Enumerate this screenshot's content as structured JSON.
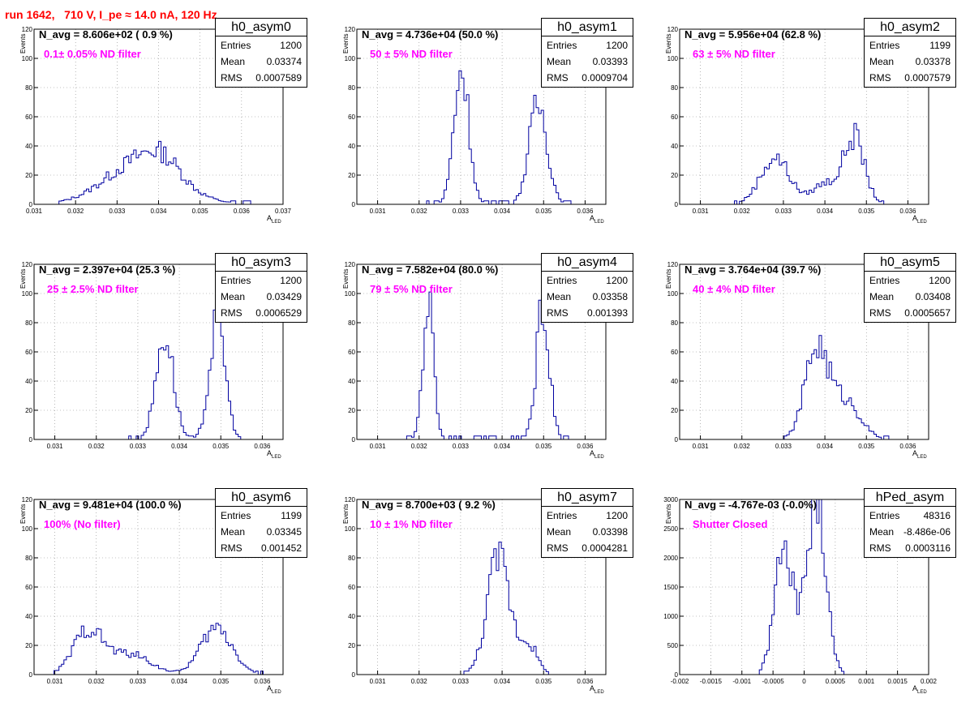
{
  "page_title": "run 1642,   710 V, I_pe ≈ 14.0 nA, 120 Hz",
  "stats_labels": {
    "entries": "Entries",
    "mean": "Mean",
    "rms": "RMS"
  },
  "y_title": "Events",
  "x_title_main": "A",
  "x_title_sub": "LED",
  "colors": {
    "histogram": "#0000a0",
    "title": "#ff0000",
    "annotation": "#ff00ff",
    "grid": "#888888"
  },
  "panels": [
    {
      "name": "h0_asym0",
      "navg": "N_avg = 8.606e+02 ( 0.9 %)",
      "note": "0.1± 0.05% ND filter",
      "entries": "1200",
      "mean": "0.03374",
      "rms": "0.0007589"
    },
    {
      "name": "h0_asym1",
      "navg": "N_avg = 4.736e+04 (50.0 %)",
      "note": "50 ± 5% ND filter",
      "entries": "1200",
      "mean": "0.03393",
      "rms": "0.0009704"
    },
    {
      "name": "h0_asym2",
      "navg": "N_avg = 5.956e+04 (62.8 %)",
      "note": "63 ± 5% ND filter",
      "entries": "1199",
      "mean": "0.03378",
      "rms": "0.0007579"
    },
    {
      "name": "h0_asym3",
      "navg": "N_avg = 2.397e+04 (25.3 %)",
      "note": "25 ± 2.5% ND filter",
      "entries": "1200",
      "mean": "0.03429",
      "rms": "0.0006529"
    },
    {
      "name": "h0_asym4",
      "navg": "N_avg = 7.582e+04 (80.0 %)",
      "note": "79 ± 5% ND filter",
      "entries": "1200",
      "mean": "0.03358",
      "rms": "0.001393"
    },
    {
      "name": "h0_asym5",
      "navg": "N_avg = 3.764e+04 (39.7 %)",
      "note": "40 ± 4% ND filter",
      "entries": "1200",
      "mean": "0.03408",
      "rms": "0.0005657"
    },
    {
      "name": "h0_asym6",
      "navg": "N_avg = 9.481e+04 (100.0 %)",
      "note": "100% (No filter)",
      "entries": "1199",
      "mean": "0.03345",
      "rms": "0.001452"
    },
    {
      "name": "h0_asym7",
      "navg": "N_avg = 8.700e+03 ( 9.2 %)",
      "note": "10 ± 1% ND filter",
      "entries": "1200",
      "mean": "0.03398",
      "rms": "0.0004281"
    },
    {
      "name": "hPed_asym",
      "navg": "N_avg = -4.767e-03 (-0.0%)",
      "note": "Shutter Closed",
      "entries": "48316",
      "mean": "-8.486e-06",
      "rms": "0.0003116"
    }
  ],
  "chart_data": [
    {
      "type": "bar",
      "title": "h0_asym0",
      "xlabel": "A_LED",
      "ylabel": "Events",
      "xlim": [
        0.031,
        0.037
      ],
      "ylim": [
        0,
        120
      ],
      "x_ticks": [
        "0.031",
        "0.032",
        "0.033",
        "0.034",
        "0.035",
        "0.036",
        "0.037"
      ],
      "y_ticks": [
        "0",
        "20",
        "40",
        "60",
        "80",
        "100",
        "120"
      ],
      "grid": true,
      "series": [
        {
          "peaks": [
            {
              "center": 0.0336,
              "sigma": 0.00085,
              "amp": 30
            },
            {
              "center": 0.0341,
              "sigma": 0.0004,
              "amp": 10
            }
          ],
          "range": [
            0.0316,
            0.0362
          ]
        }
      ]
    },
    {
      "type": "bar",
      "title": "h0_asym1",
      "xlabel": "A_LED",
      "ylabel": "Events",
      "xlim": [
        0.0305,
        0.0365
      ],
      "ylim": [
        0,
        120
      ],
      "x_ticks": [
        "0.031",
        "0.032",
        "0.033",
        "0.034",
        "0.035",
        "0.036"
      ],
      "y_ticks": [
        "0",
        "20",
        "40",
        "60",
        "80",
        "100",
        "120"
      ],
      "grid": true,
      "series": [
        {
          "peaks": [
            {
              "center": 0.03302,
              "sigma": 0.00018,
              "amp": 93
            },
            {
              "center": 0.03487,
              "sigma": 0.00022,
              "amp": 68
            }
          ],
          "range": [
            0.0322,
            0.0358
          ]
        }
      ]
    },
    {
      "type": "bar",
      "title": "h0_asym2",
      "xlabel": "A_LED",
      "ylabel": "Events",
      "xlim": [
        0.0305,
        0.0365
      ],
      "ylim": [
        0,
        120
      ],
      "x_ticks": [
        "0.031",
        "0.032",
        "0.033",
        "0.034",
        "0.035",
        "0.036"
      ],
      "y_ticks": [
        "0",
        "20",
        "40",
        "60",
        "80",
        "100",
        "120"
      ],
      "grid": true,
      "series": [
        {
          "peaks": [
            {
              "center": 0.0328,
              "sigma": 0.00035,
              "amp": 32
            },
            {
              "center": 0.034,
              "sigma": 0.0003,
              "amp": 14
            },
            {
              "center": 0.0347,
              "sigma": 0.00025,
              "amp": 46
            }
          ],
          "range": [
            0.0318,
            0.0355
          ]
        }
      ]
    },
    {
      "type": "bar",
      "title": "h0_asym3",
      "xlabel": "A_LED",
      "ylabel": "Events",
      "xlim": [
        0.0305,
        0.0365
      ],
      "ylim": [
        0,
        120
      ],
      "x_ticks": [
        "0.031",
        "0.032",
        "0.033",
        "0.034",
        "0.035",
        "0.036"
      ],
      "y_ticks": [
        "0",
        "20",
        "40",
        "60",
        "80",
        "100",
        "120"
      ],
      "grid": true,
      "series": [
        {
          "peaks": [
            {
              "center": 0.03365,
              "sigma": 0.00021,
              "amp": 72
            },
            {
              "center": 0.03492,
              "sigma": 0.00019,
              "amp": 82
            }
          ],
          "range": [
            0.0328,
            0.0356
          ]
        }
      ]
    },
    {
      "type": "bar",
      "title": "h0_asym4",
      "xlabel": "A_LED",
      "ylabel": "Events",
      "xlim": [
        0.0305,
        0.0365
      ],
      "ylim": [
        0,
        120
      ],
      "x_ticks": [
        "0.031",
        "0.032",
        "0.033",
        "0.034",
        "0.035",
        "0.036"
      ],
      "y_ticks": [
        "0",
        "20",
        "40",
        "60",
        "80",
        "100",
        "120"
      ],
      "grid": true,
      "series": [
        {
          "peaks": [
            {
              "center": 0.03222,
              "sigma": 0.00013,
              "amp": 95
            },
            {
              "center": 0.03498,
              "sigma": 0.00016,
              "amp": 88
            }
          ],
          "range": [
            0.0317,
            0.0356
          ]
        }
      ]
    },
    {
      "type": "bar",
      "title": "h0_asym5",
      "xlabel": "A_LED",
      "ylabel": "Events",
      "xlim": [
        0.0305,
        0.0365
      ],
      "ylim": [
        0,
        120
      ],
      "x_ticks": [
        "0.031",
        "0.032",
        "0.033",
        "0.034",
        "0.035",
        "0.036"
      ],
      "y_ticks": [
        "0",
        "20",
        "40",
        "60",
        "80",
        "100",
        "120"
      ],
      "grid": true,
      "series": [
        {
          "peaks": [
            {
              "center": 0.0338,
              "sigma": 0.00028,
              "amp": 62
            },
            {
              "center": 0.0345,
              "sigma": 0.00035,
              "amp": 26
            }
          ],
          "range": [
            0.033,
            0.0356
          ]
        }
      ]
    },
    {
      "type": "bar",
      "title": "h0_asym6",
      "xlabel": "A_LED",
      "ylabel": "Events",
      "xlim": [
        0.0305,
        0.0365
      ],
      "ylim": [
        0,
        120
      ],
      "x_ticks": [
        "0.031",
        "0.032",
        "0.033",
        "0.034",
        "0.035",
        "0.036"
      ],
      "y_ticks": [
        "0",
        "20",
        "40",
        "60",
        "80",
        "100",
        "120"
      ],
      "grid": true,
      "series": [
        {
          "peaks": [
            {
              "center": 0.0318,
              "sigma": 0.00035,
              "amp": 30
            },
            {
              "center": 0.0328,
              "sigma": 0.0005,
              "amp": 14
            },
            {
              "center": 0.0349,
              "sigma": 0.00038,
              "amp": 32
            }
          ],
          "range": [
            0.031,
            0.036
          ]
        }
      ]
    },
    {
      "type": "bar",
      "title": "h0_asym7",
      "xlabel": "A_LED",
      "ylabel": "Events",
      "xlim": [
        0.0305,
        0.0365
      ],
      "ylim": [
        0,
        120
      ],
      "x_ticks": [
        "0.031",
        "0.032",
        "0.033",
        "0.034",
        "0.035",
        "0.036"
      ],
      "y_ticks": [
        "0",
        "20",
        "40",
        "60",
        "80",
        "100",
        "120"
      ],
      "grid": true,
      "series": [
        {
          "peaks": [
            {
              "center": 0.03392,
              "sigma": 0.00028,
              "amp": 80
            },
            {
              "center": 0.03465,
              "sigma": 0.0002,
              "amp": 20
            }
          ],
          "range": [
            0.033,
            0.0352
          ]
        }
      ]
    },
    {
      "type": "bar",
      "title": "hPed_asym",
      "xlabel": "A_LED",
      "ylabel": "Events",
      "xlim": [
        -0.002,
        0.002
      ],
      "ylim": [
        0,
        3000
      ],
      "x_ticks": [
        "-0.002",
        "-0.0015",
        "-0.001",
        "-0.0005",
        "0",
        "0.0005",
        "0.001",
        "0.0015",
        "0.002"
      ],
      "y_ticks": [
        "0",
        "500",
        "1000",
        "1500",
        "2000",
        "2500",
        "3000"
      ],
      "grid": true,
      "series": [
        {
          "peaks": [
            {
              "center": -0.00035,
              "sigma": 0.00014,
              "amp": 1850
            },
            {
              "center": 0.00022,
              "sigma": 0.00014,
              "amp": 2800
            },
            {
              "center": -5e-05,
              "sigma": 0.0002,
              "amp": 700
            }
          ],
          "range": [
            -0.0008,
            0.0007
          ]
        }
      ]
    }
  ]
}
